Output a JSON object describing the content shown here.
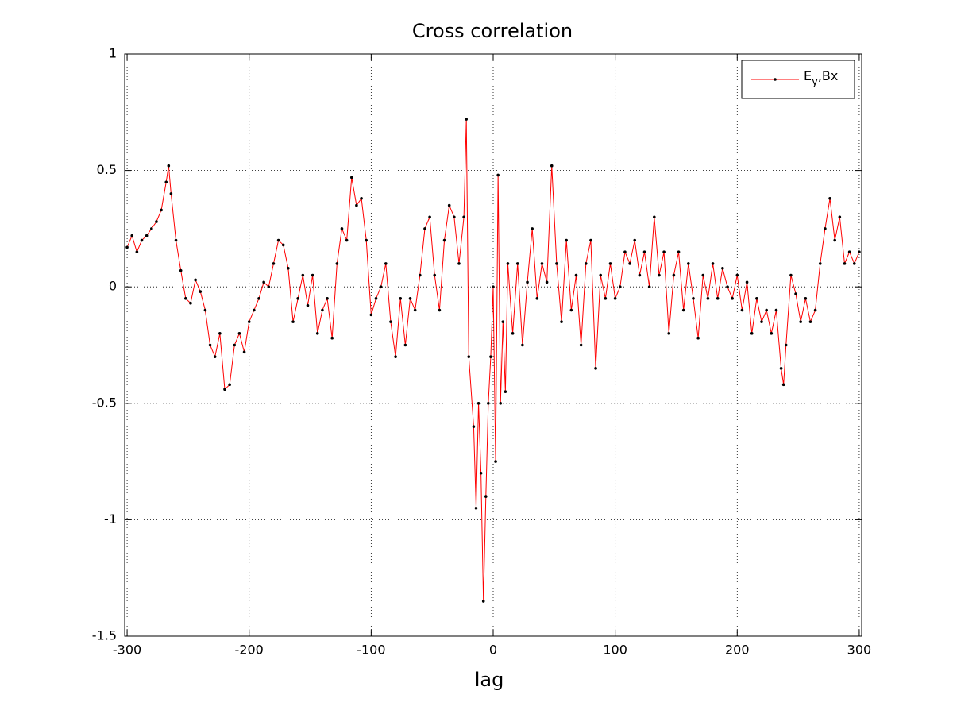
{
  "chart_data": {
    "type": "line",
    "title": "Cross correlation",
    "xlabel": "lag",
    "x": [
      -300,
      -296,
      -292,
      -288,
      -284,
      -280,
      -276,
      -272,
      -268,
      -266,
      -264,
      -260,
      -256,
      -252,
      -248,
      -244,
      -240,
      -236,
      -232,
      -228,
      -224,
      -220,
      -216,
      -212,
      -208,
      -204,
      -200,
      -196,
      -192,
      -188,
      -184,
      -180,
      -176,
      -172,
      -168,
      -164,
      -160,
      -156,
      -152,
      -148,
      -144,
      -140,
      -136,
      -132,
      -128,
      -124,
      -120,
      -116,
      -112,
      -108,
      -104,
      -100,
      -96,
      -92,
      -88,
      -84,
      -80,
      -76,
      -72,
      -68,
      -64,
      -60,
      -56,
      -52,
      -48,
      -44,
      -40,
      -36,
      -32,
      -28,
      -24,
      -22,
      -20,
      -16,
      -14,
      -12,
      -10,
      -8,
      -6,
      -4,
      -2,
      0,
      2,
      4,
      6,
      8,
      10,
      12,
      16,
      20,
      24,
      28,
      32,
      36,
      40,
      44,
      48,
      52,
      56,
      60,
      64,
      68,
      72,
      76,
      80,
      84,
      88,
      92,
      96,
      100,
      104,
      108,
      112,
      116,
      120,
      124,
      128,
      132,
      136,
      140,
      144,
      148,
      152,
      156,
      160,
      164,
      168,
      172,
      176,
      180,
      184,
      188,
      192,
      196,
      200,
      204,
      208,
      212,
      216,
      220,
      224,
      228,
      232,
      236,
      238,
      240,
      244,
      248,
      252,
      256,
      260,
      264,
      268,
      272,
      276,
      280,
      284,
      288,
      292,
      296,
      300
    ],
    "series": [
      {
        "name": "Ey,Bx",
        "color": "#ff0000",
        "marker_color": "#000000",
        "values": [
          0.17,
          0.22,
          0.15,
          0.2,
          0.22,
          0.25,
          0.28,
          0.33,
          0.45,
          0.52,
          0.4,
          0.2,
          0.07,
          -0.05,
          -0.07,
          0.03,
          -0.02,
          -0.1,
          -0.25,
          -0.3,
          -0.2,
          -0.44,
          -0.42,
          -0.25,
          -0.2,
          -0.28,
          -0.15,
          -0.1,
          -0.05,
          0.02,
          0.0,
          0.1,
          0.2,
          0.18,
          0.08,
          -0.15,
          -0.05,
          0.05,
          -0.08,
          0.05,
          -0.2,
          -0.1,
          -0.05,
          -0.22,
          0.1,
          0.25,
          0.2,
          0.47,
          0.35,
          0.38,
          0.2,
          -0.12,
          -0.05,
          0.0,
          0.1,
          -0.15,
          -0.3,
          -0.05,
          -0.25,
          -0.05,
          -0.1,
          0.05,
          0.25,
          0.3,
          0.05,
          -0.1,
          0.2,
          0.35,
          0.3,
          0.1,
          0.3,
          0.72,
          -0.3,
          -0.6,
          -0.95,
          -0.5,
          -0.8,
          -1.35,
          -0.9,
          -0.5,
          -0.3,
          0.0,
          -0.75,
          0.48,
          -0.5,
          -0.15,
          -0.45,
          0.1,
          -0.2,
          0.1,
          -0.25,
          0.02,
          0.25,
          -0.05,
          0.1,
          0.02,
          0.52,
          0.1,
          -0.15,
          0.2,
          -0.1,
          0.05,
          -0.25,
          0.1,
          0.2,
          -0.35,
          0.05,
          -0.05,
          0.1,
          -0.05,
          0.0,
          0.15,
          0.1,
          0.2,
          0.05,
          0.15,
          0.0,
          0.3,
          0.05,
          0.15,
          -0.2,
          0.05,
          0.15,
          -0.1,
          0.1,
          -0.05,
          -0.22,
          0.05,
          -0.05,
          0.1,
          -0.05,
          0.08,
          0.0,
          -0.05,
          0.05,
          -0.1,
          0.02,
          -0.2,
          -0.05,
          -0.15,
          -0.1,
          -0.2,
          -0.1,
          -0.35,
          -0.42,
          -0.25,
          0.05,
          -0.03,
          -0.15,
          -0.05,
          -0.15,
          -0.1,
          0.1,
          0.25,
          0.38,
          0.2,
          0.3,
          0.1,
          0.15,
          0.1,
          0.15
        ]
      }
    ],
    "xlim": [
      -302,
      302
    ],
    "ylim": [
      -1.5,
      1
    ],
    "xticks": [
      -300,
      -200,
      -100,
      0,
      100,
      200,
      300
    ],
    "yticks": [
      -1.5,
      -1,
      -0.5,
      0,
      0.5,
      1
    ],
    "grid": true,
    "legend": "upper right"
  }
}
